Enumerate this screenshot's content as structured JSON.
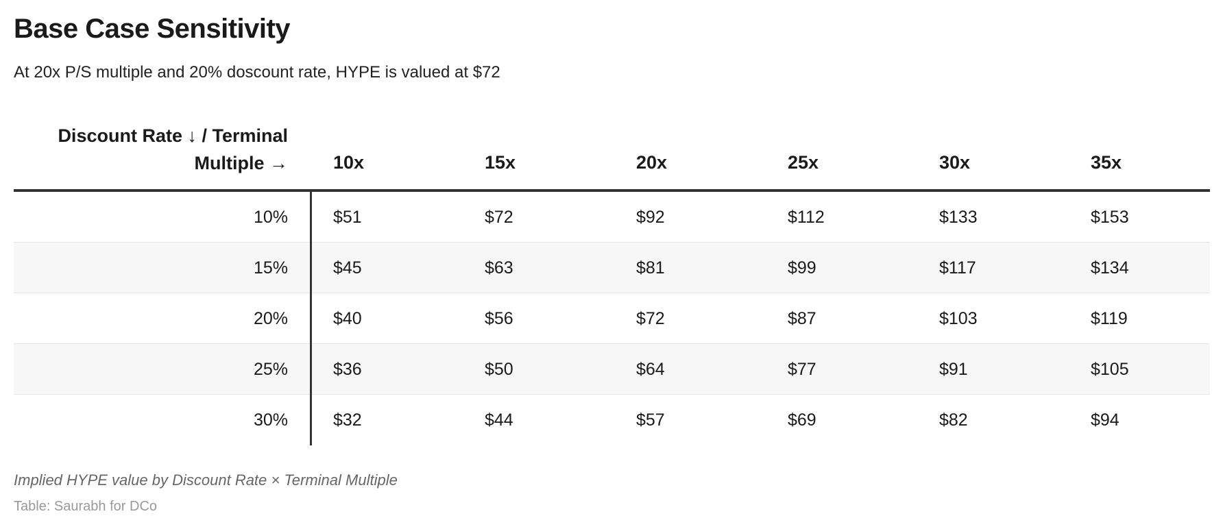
{
  "chart_data": {
    "type": "table",
    "title": "Base Case Sensitivity",
    "subtitle": "At 20x P/S multiple and 20% doscount rate, HYPE is valued at $72",
    "corner_header_line1": "Discount Rate ↓ / Terminal",
    "corner_header_line2": "Multiple →",
    "columns": [
      "10x",
      "15x",
      "20x",
      "25x",
      "30x",
      "35x"
    ],
    "rows": [
      {
        "label": "10%",
        "values": [
          "$51",
          "$72",
          "$92",
          "$112",
          "$133",
          "$153"
        ]
      },
      {
        "label": "15%",
        "values": [
          "$45",
          "$63",
          "$81",
          "$99",
          "$117",
          "$134"
        ]
      },
      {
        "label": "20%",
        "values": [
          "$40",
          "$56",
          "$72",
          "$87",
          "$103",
          "$119"
        ]
      },
      {
        "label": "25%",
        "values": [
          "$36",
          "$50",
          "$64",
          "$77",
          "$91",
          "$105"
        ]
      },
      {
        "label": "30%",
        "values": [
          "$32",
          "$44",
          "$57",
          "$69",
          "$82",
          "$94"
        ]
      }
    ],
    "caption": "Implied HYPE value by Discount Rate × Terminal Multiple",
    "source": "Table: Saurabh for DCo",
    "colors": {
      "text": "#1a1a1a",
      "rule": "#333333",
      "alt_row": "#f7f7f7",
      "caption": "#666666",
      "source": "#999999"
    }
  }
}
